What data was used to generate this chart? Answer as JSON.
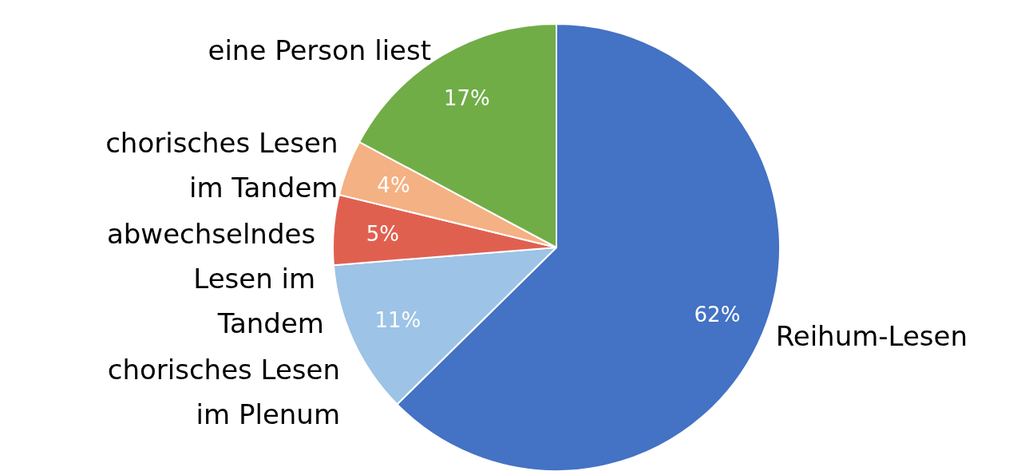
{
  "chart_data": {
    "type": "pie",
    "categories": [
      "Reihum-Lesen",
      "chorisches Lesen im Plenum",
      "abwechselndes Lesen im Tandem",
      "chorisches Lesen im Tandem",
      "eine Person liest"
    ],
    "values": [
      62,
      11,
      5,
      4,
      17
    ],
    "value_labels": [
      "62%",
      "11%",
      "5%",
      "4%",
      "17%"
    ],
    "colors": [
      "#4472c4",
      "#9dc3e6",
      "#e06050",
      "#f4b183",
      "#70ad47"
    ],
    "legend": false
  }
}
